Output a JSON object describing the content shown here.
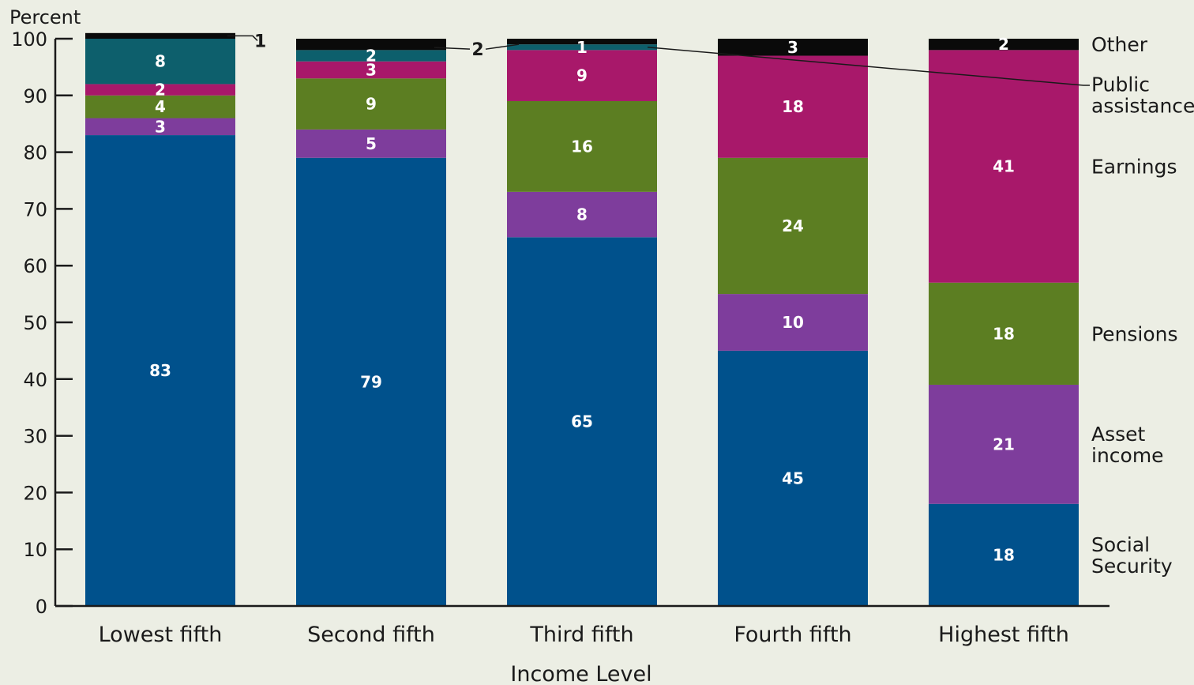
{
  "chart_data": {
    "type": "bar",
    "stacked": true,
    "ylabel": "Percent",
    "xlabel": "Income Level",
    "ylim": [
      0,
      100
    ],
    "yticks": [
      0,
      10,
      20,
      30,
      40,
      50,
      60,
      70,
      80,
      90,
      100
    ],
    "categories": [
      "Lowest fifth",
      "Second fifth",
      "Third fifth",
      "Fourth fifth",
      "Highest fifth"
    ],
    "series": [
      {
        "name": "Social Security",
        "legend_lines": [
          "Social",
          "Security"
        ],
        "color": "#00518c",
        "values": [
          83,
          79,
          65,
          45,
          18
        ],
        "labels": [
          "83",
          "79",
          "65",
          "45",
          "18"
        ]
      },
      {
        "name": "Asset income",
        "legend_lines": [
          "Asset",
          "income"
        ],
        "color": "#7e3d9c",
        "values": [
          3,
          5,
          8,
          10,
          21
        ],
        "labels": [
          "3",
          "5",
          "8",
          "10",
          "21"
        ]
      },
      {
        "name": "Pensions",
        "legend_lines": [
          "Pensions"
        ],
        "color": "#5c7e22",
        "values": [
          4,
          9,
          16,
          24,
          18
        ],
        "labels": [
          "4",
          "9",
          "16",
          "24",
          "18"
        ]
      },
      {
        "name": "Earnings",
        "legend_lines": [
          "Earnings"
        ],
        "color": "#a8186a",
        "values": [
          2,
          3,
          9,
          18,
          41
        ],
        "labels": [
          "2",
          "3",
          "9",
          "18",
          "41"
        ]
      },
      {
        "name": "Public assistance",
        "legend_lines": [
          "Public",
          "assistance"
        ],
        "color": "#0d5f6c",
        "values": [
          8,
          2,
          1,
          0,
          0
        ],
        "labels": [
          "8",
          "2",
          "1",
          "",
          ""
        ]
      },
      {
        "name": "Other",
        "legend_lines": [
          "Other"
        ],
        "color": "#0a0a0a",
        "values": [
          1,
          2,
          1,
          3,
          2
        ],
        "labels": [
          "",
          "",
          "",
          "3",
          "2"
        ]
      }
    ],
    "callouts": [
      {
        "category": "Lowest fifth",
        "series": "Other",
        "text": "1"
      },
      {
        "category": "Second fifth",
        "series": "Other",
        "text": "2"
      }
    ],
    "grid": false,
    "legend_position": "right"
  }
}
